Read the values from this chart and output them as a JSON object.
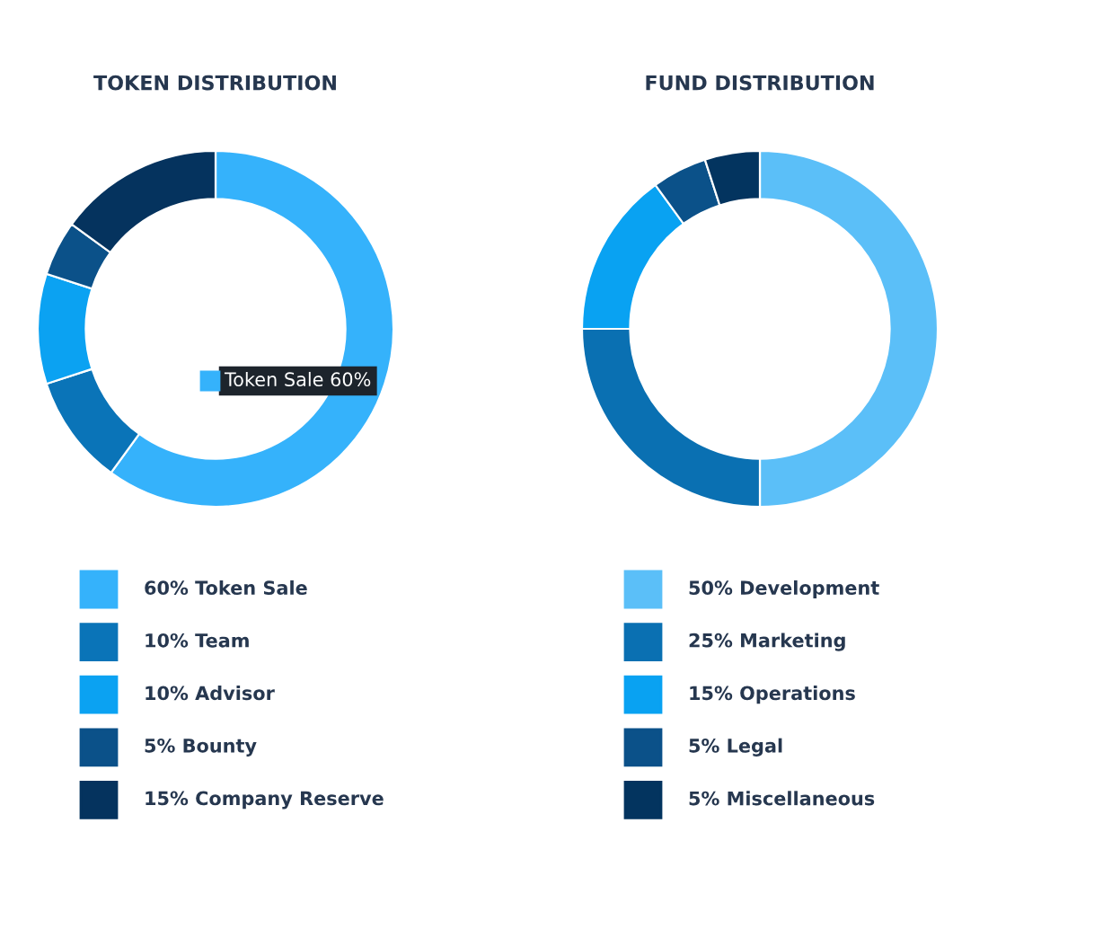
{
  "chart_data": [
    {
      "type": "donut",
      "title": "TOKEN DISTRIBUTION",
      "categories": [
        "60% Token Sale",
        "10% Team",
        "10% Advisor",
        "5% Bounty",
        "15% Company Reserve"
      ],
      "values": [
        60,
        10,
        10,
        5,
        15
      ],
      "colors": [
        "#35b2fb",
        "#0a74b8",
        "#0ba2f2",
        "#0b5189",
        "#05335e"
      ],
      "legend": "bottom",
      "annotations": [
        "Token Sale 60%"
      ]
    },
    {
      "type": "donut",
      "title": "FUND DISTRIBUTION",
      "categories": [
        "50% Development",
        "25% Marketing",
        "15% Operations",
        "5% Legal",
        "5% Miscellaneous"
      ],
      "values": [
        50,
        25,
        15,
        5,
        5
      ],
      "colors": [
        "#5bbff8",
        "#0a70b2",
        "#09a2f2",
        "#0b5189",
        "#03345f"
      ],
      "legend": "bottom"
    }
  ]
}
